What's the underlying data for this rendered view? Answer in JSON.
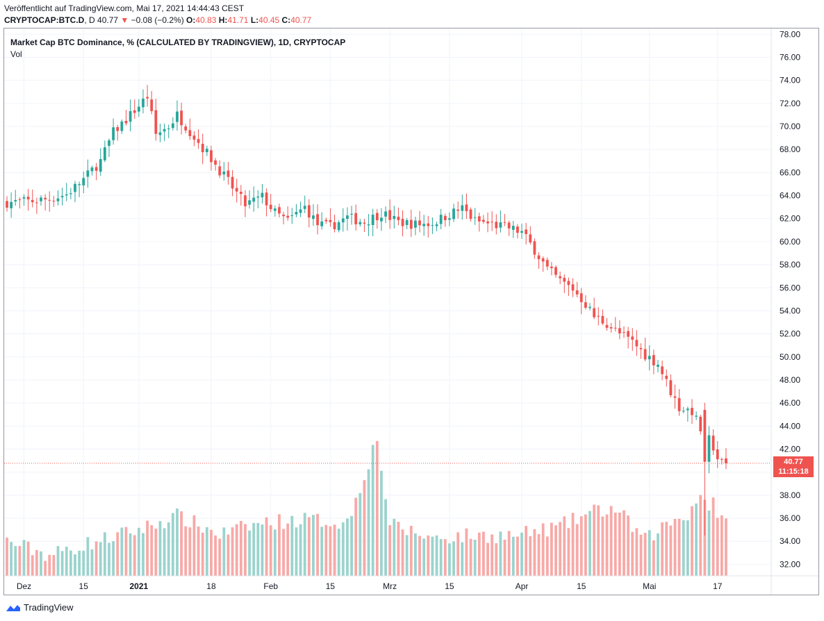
{
  "header": {
    "published": "Veröffentlicht auf TradingView.com, Mai 17, 2021 14:44:43 CEST",
    "symbol": "CRYPTOCAP:BTC.D",
    "interval": "D",
    "last": "40.77",
    "change_arrow": "▼",
    "change": "−0.08 (−0.2%)",
    "o_label": "O:",
    "o_value": "40.83",
    "h_label": "H:",
    "h_value": "41.71",
    "l_label": "L:",
    "l_value": "40.45",
    "c_label": "C:",
    "c_value": "40.77"
  },
  "legend": {
    "title": "Market Cap BTC Dominance, % (CALCULATED BY TRADINGVIEW), 1D, CRYPTOCAP",
    "vol": "Vol"
  },
  "price_tag": {
    "price": "40.77",
    "countdown": "11:15:18"
  },
  "footer": {
    "brand": "TradingView",
    "logo_icon": "tradingview-logo-icon"
  },
  "colors": {
    "up": "#26a69a",
    "down": "#ef5350",
    "vol_up": "#9bd3cd",
    "vol_down": "#f7a9a7"
  },
  "chart_data": {
    "type": "candlestick",
    "y_axis": {
      "min": 31,
      "max": 78.5,
      "ticks": [
        "78.00",
        "76.00",
        "74.00",
        "72.00",
        "70.00",
        "68.00",
        "66.00",
        "64.00",
        "62.00",
        "60.00",
        "58.00",
        "56.00",
        "54.00",
        "52.00",
        "50.00",
        "48.00",
        "46.00",
        "44.00",
        "42.00",
        "40.00",
        "38.00",
        "36.00",
        "34.00",
        "32.00"
      ]
    },
    "x_axis": {
      "labels": [
        {
          "text": "Dez",
          "day": 4
        },
        {
          "text": "15",
          "day": 18
        },
        {
          "text": "2021",
          "day": 31
        },
        {
          "text": "18",
          "day": 48
        },
        {
          "text": "Feb",
          "day": 62
        },
        {
          "text": "15",
          "day": 76
        },
        {
          "text": "Mrz",
          "day": 90
        },
        {
          "text": "15",
          "day": 104
        },
        {
          "text": "Apr",
          "day": 121
        },
        {
          "text": "15",
          "day": 135
        },
        {
          "text": "Mai",
          "day": 151
        },
        {
          "text": "17",
          "day": 167
        }
      ],
      "first_day": "2020-11-27",
      "last_day": "2021-05-17"
    },
    "grid": true,
    "last_price": 40.77,
    "anchors": [
      [
        0,
        63.4
      ],
      [
        5,
        63.5
      ],
      [
        10,
        63.7
      ],
      [
        14,
        64.1
      ],
      [
        18,
        65.4
      ],
      [
        22,
        67.0
      ],
      [
        25,
        69.5
      ],
      [
        28,
        70.6
      ],
      [
        33,
        72.6
      ],
      [
        35,
        69.3
      ],
      [
        38,
        70.0
      ],
      [
        40,
        71.0
      ],
      [
        43,
        69.6
      ],
      [
        48,
        67.2
      ],
      [
        52,
        65.2
      ],
      [
        56,
        63.2
      ],
      [
        60,
        63.9
      ],
      [
        63,
        62.5
      ],
      [
        66,
        61.8
      ],
      [
        70,
        63.0
      ],
      [
        73,
        61.5
      ],
      [
        76,
        61.3
      ],
      [
        80,
        62.1
      ],
      [
        84,
        61.7
      ],
      [
        88,
        62.5
      ],
      [
        92,
        61.7
      ],
      [
        96,
        61.5
      ],
      [
        100,
        61.6
      ],
      [
        104,
        62.4
      ],
      [
        107,
        62.9
      ],
      [
        110,
        61.8
      ],
      [
        114,
        61.5
      ],
      [
        118,
        61.2
      ],
      [
        121,
        60.8
      ],
      [
        124,
        59.3
      ],
      [
        127,
        57.6
      ],
      [
        130,
        56.6
      ],
      [
        133,
        55.9
      ],
      [
        136,
        54.6
      ],
      [
        138,
        53.5
      ],
      [
        141,
        52.9
      ],
      [
        144,
        52.0
      ],
      [
        147,
        51.3
      ],
      [
        150,
        50.2
      ],
      [
        153,
        49.4
      ],
      [
        156,
        47.0
      ],
      [
        158,
        45.6
      ],
      [
        161,
        45.3
      ],
      [
        163,
        43.7
      ],
      [
        164,
        41.7
      ],
      [
        165,
        43.2
      ],
      [
        167,
        41.2
      ],
      [
        168,
        40.8
      ],
      [
        169,
        40.77
      ]
    ],
    "volume_profile": [
      [
        0,
        34.0
      ],
      [
        10,
        32.8
      ],
      [
        20,
        33.9
      ],
      [
        31,
        35.0
      ],
      [
        40,
        36.2
      ],
      [
        50,
        34.6
      ],
      [
        60,
        35.6
      ],
      [
        70,
        35.9
      ],
      [
        80,
        35.6
      ],
      [
        87,
        43.0
      ],
      [
        90,
        35.4
      ],
      [
        100,
        34.3
      ],
      [
        110,
        34.5
      ],
      [
        120,
        34.5
      ],
      [
        130,
        35.3
      ],
      [
        138,
        36.6
      ],
      [
        143,
        36.8
      ],
      [
        150,
        34.1
      ],
      [
        155,
        35.5
      ],
      [
        160,
        36.4
      ],
      [
        163,
        38.0
      ],
      [
        166,
        35.6
      ],
      [
        169,
        35.6
      ]
    ]
  }
}
